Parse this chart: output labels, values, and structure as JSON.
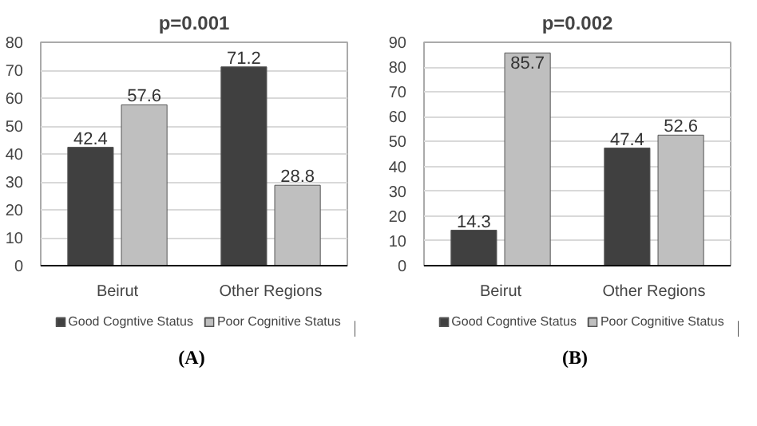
{
  "chart_data": [
    {
      "type": "bar",
      "title": "p=0.001",
      "categories": [
        "Beirut",
        "Other Regions"
      ],
      "series": [
        {
          "name": "Good Cogntive Status",
          "color": "#404040",
          "values": [
            42.4,
            71.2
          ]
        },
        {
          "name": "Poor Cognitive Status",
          "color": "#bfbfbf",
          "values": [
            57.6,
            28.8
          ]
        }
      ],
      "ylim": [
        0,
        80
      ],
      "yticks": [
        0,
        10,
        20,
        30,
        40,
        50,
        60,
        70,
        80
      ],
      "grid": "y",
      "legend": "bottom",
      "data_labels": true,
      "annotations": [
        "(A)"
      ]
    },
    {
      "type": "bar",
      "title": "p=0.002",
      "categories": [
        "Beirut",
        "Other Regions"
      ],
      "series": [
        {
          "name": "Good Cogntive Status",
          "color": "#404040",
          "values": [
            14.3,
            47.4
          ]
        },
        {
          "name": "Poor Cognitive Status",
          "color": "#bfbfbf",
          "values": [
            85.7,
            52.6
          ]
        }
      ],
      "ylim": [
        0,
        90
      ],
      "yticks": [
        0,
        10,
        20,
        30,
        40,
        50,
        60,
        70,
        80,
        90
      ],
      "grid": "y",
      "legend": "bottom",
      "data_labels": true,
      "annotations": [
        "(B)"
      ]
    }
  ]
}
